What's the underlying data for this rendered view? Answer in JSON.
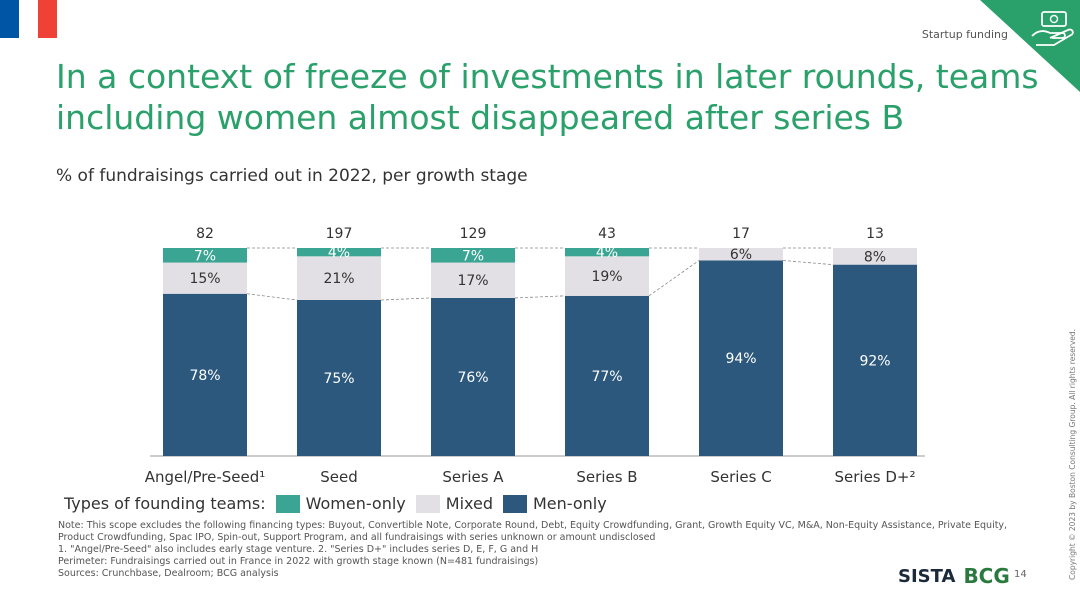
{
  "header": {
    "section_label": "Startup funding",
    "title": "In a context of freeze of investments in later rounds, teams including women almost disappeared after series B",
    "subtitle": "% of fundraisings carried out in 2022, per growth stage"
  },
  "flag_colors": [
    "#0055a4",
    "#ffffff",
    "#ef4135"
  ],
  "corner_icon": "money-hand-icon",
  "colors": {
    "men": "#2b587c",
    "mixed": "#e2e0e4",
    "women": "#3aa592",
    "accent": "#2aa06a",
    "corner": "#2aa06a"
  },
  "chart_data": {
    "type": "bar",
    "stacked": true,
    "normalized": true,
    "categories": [
      "Angel/Pre-Seed¹",
      "Seed",
      "Series A",
      "Series B",
      "Series C",
      "Series D+²"
    ],
    "totals": [
      "82",
      "197",
      "129",
      "43",
      "17",
      "13"
    ],
    "series": [
      {
        "key": "men",
        "name": "Men-only",
        "values": [
          78,
          75,
          76,
          77,
          94,
          92
        ],
        "labels": [
          "78%",
          "75%",
          "76%",
          "77%",
          "94%",
          "92%"
        ]
      },
      {
        "key": "mixed",
        "name": "Mixed",
        "values": [
          15,
          21,
          17,
          19,
          6,
          8
        ],
        "labels": [
          "15%",
          "21%",
          "17%",
          "19%",
          "6%",
          "8%"
        ]
      },
      {
        "key": "women",
        "name": "Women-only",
        "values": [
          7,
          4,
          7,
          4,
          0,
          0
        ],
        "labels": [
          "7%",
          "4%",
          "7%",
          "4%",
          "",
          ""
        ]
      }
    ],
    "ylim": [
      0,
      100
    ],
    "legend_title": "Types of founding teams:",
    "legend_position": "bottom-left"
  },
  "notes": {
    "note": "Note: This scope excludes the following financing types: Buyout, Convertible Note, Corporate Round, Debt, Equity Crowdfunding, Grant, Growth Equity VC, M&A, Non-Equity Assistance, Private Equity, Product Crowdfunding, Spac IPO, Spin-out, Support Program, and all fundraisings with series unknown or amount undisclosed",
    "footnote": "1. \"Angel/Pre-Seed\" also includes early stage venture. 2. \"Series D+\" includes series D, E, F, G and H",
    "perimeter": "Perimeter: Fundraisings carried out in France in 2022 with growth stage known (N=481 fundraisings)",
    "sources": "Sources: Crunchbase, Dealroom; BCG analysis"
  },
  "footer": {
    "logo_sista": "SISTA",
    "logo_bcg": "BCG",
    "page_number": "14",
    "copyright": "Copyright © 2023 by Boston Consulting Group. All rights reserved."
  }
}
